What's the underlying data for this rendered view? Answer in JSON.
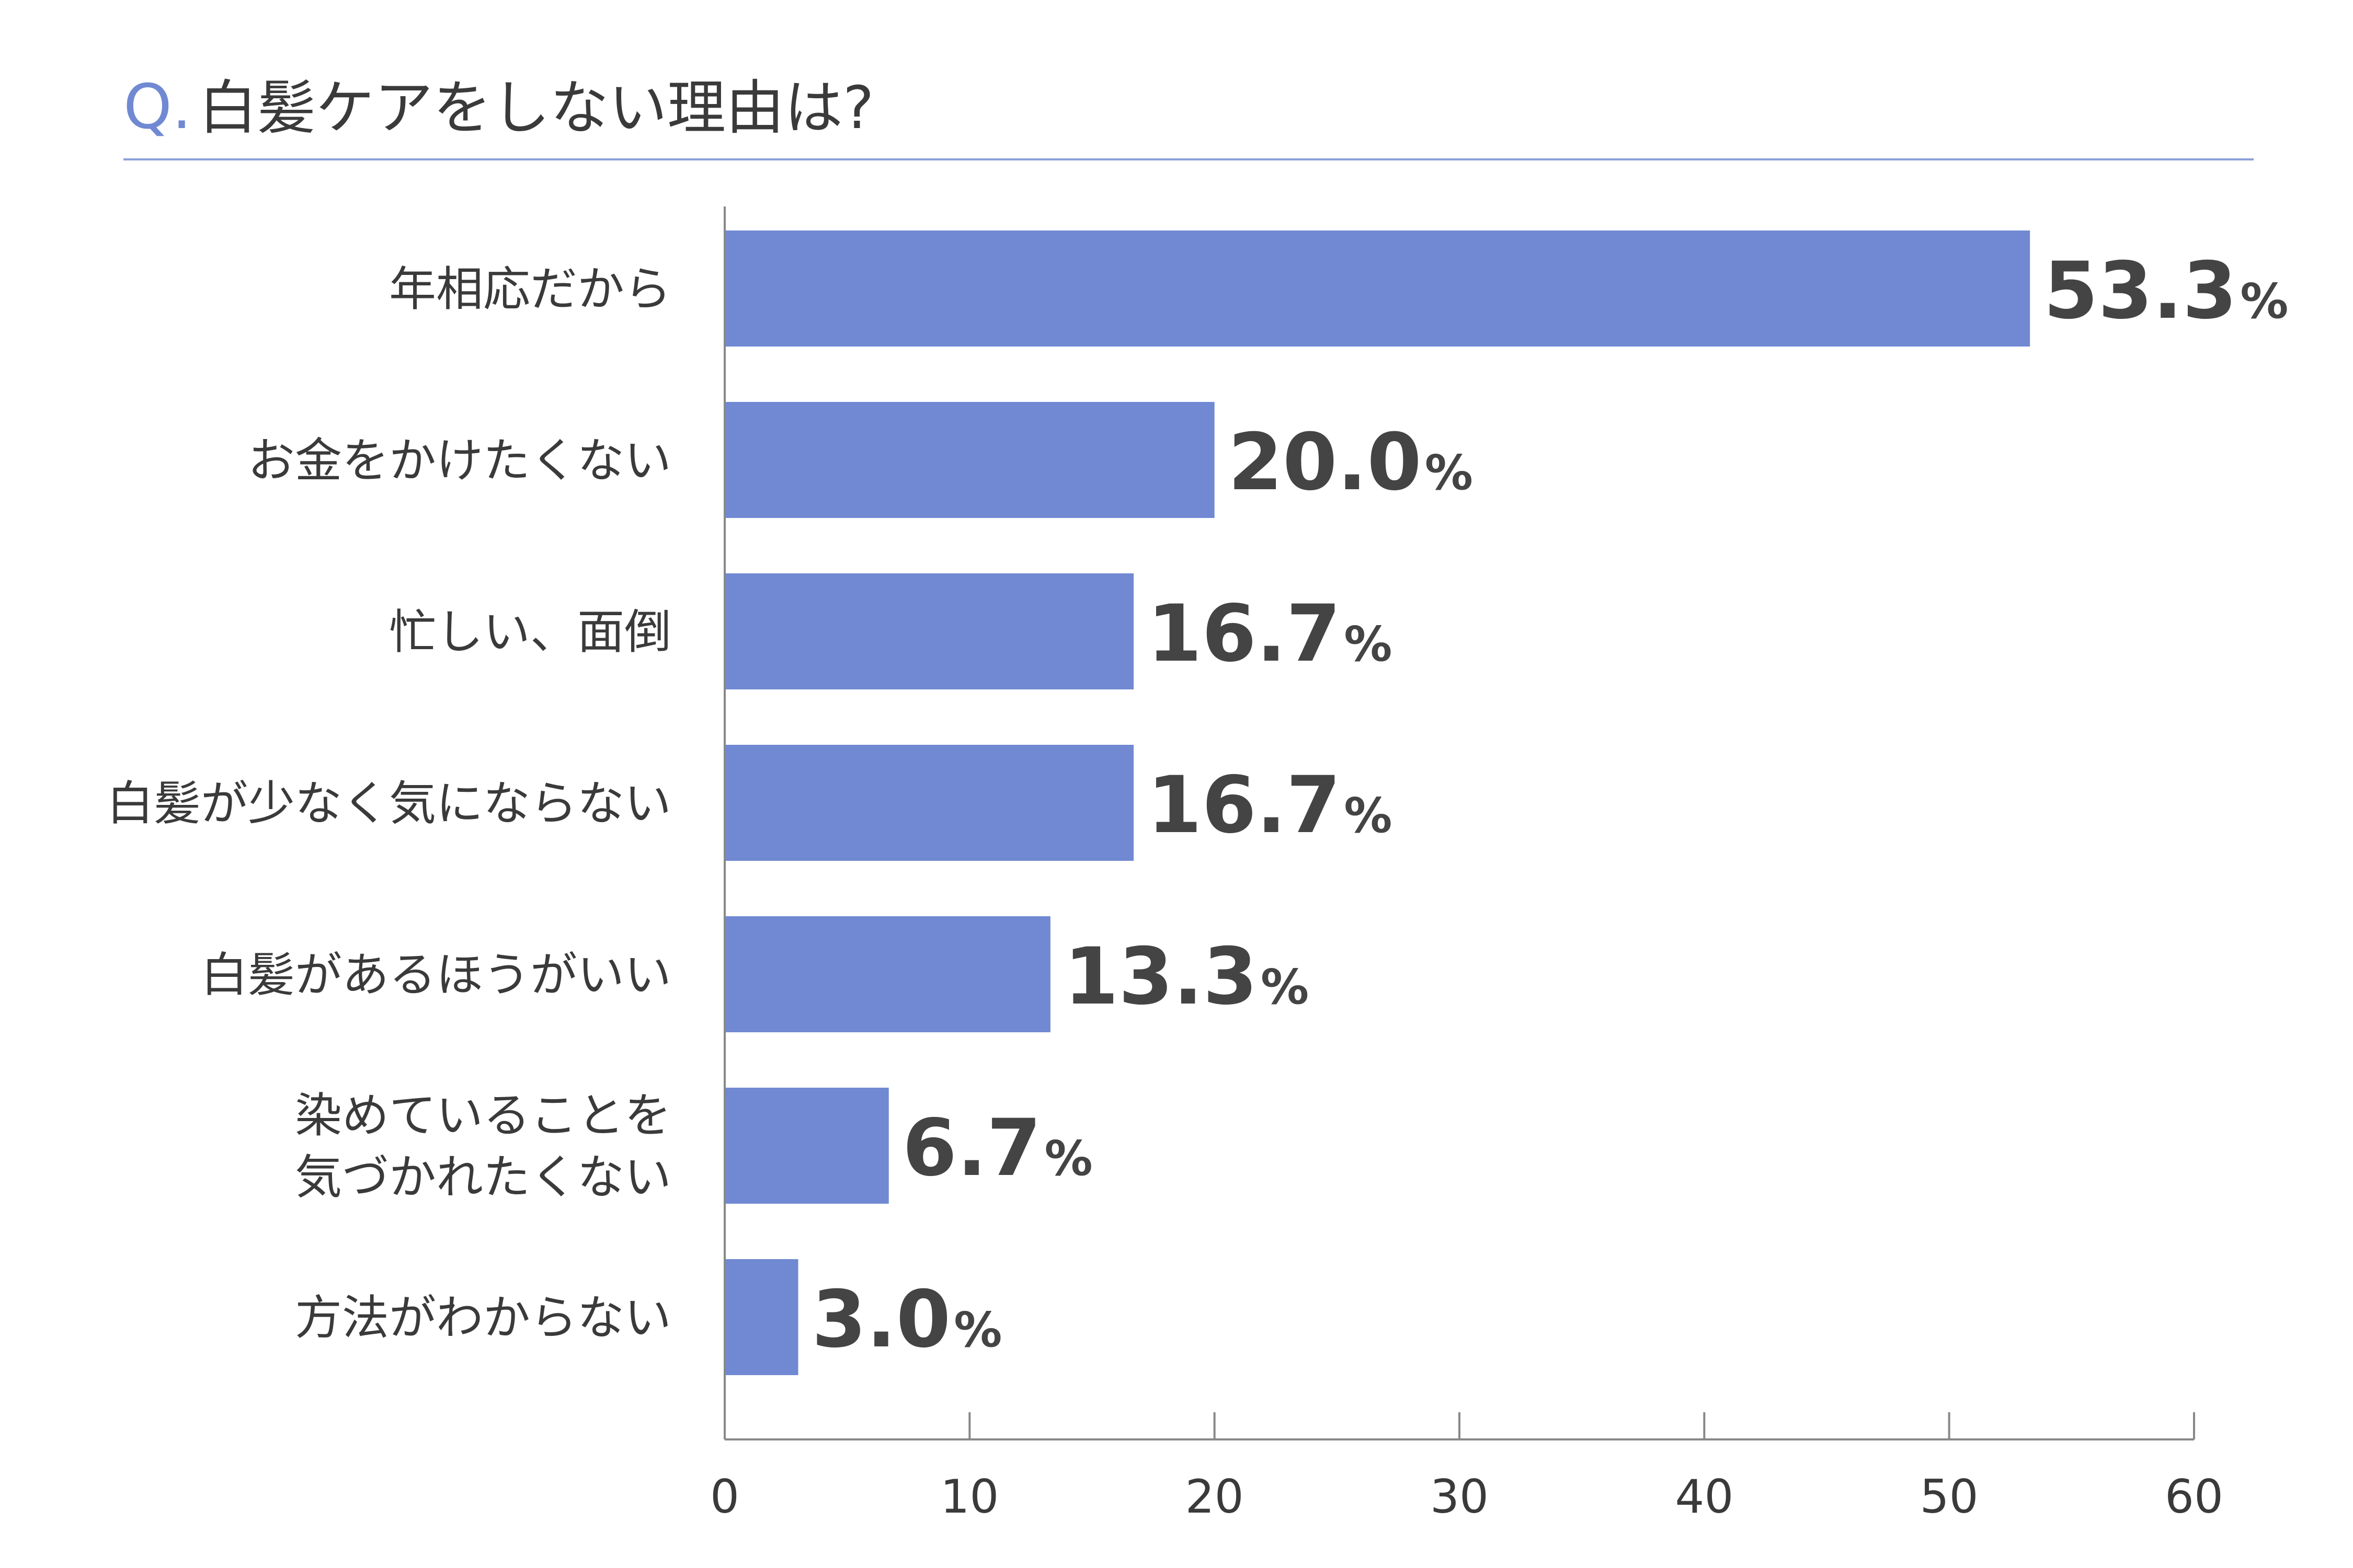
{
  "title": {
    "prefix": "Q.",
    "text": "白髪ケアをしない理由は?"
  },
  "colors": {
    "bar": "#7089d2",
    "accent": "#7089d2",
    "title_rule": "#8aa0d8",
    "axis": "#888888",
    "text": "#3a3a3a",
    "value_text": "#444444"
  },
  "chart_data": {
    "type": "bar",
    "orientation": "horizontal",
    "title": "Q.白髪ケアをしない理由は?",
    "categories": [
      "年相応だから",
      "お金をかけたくない",
      "忙しい、面倒",
      "白髪が少なく気にならない",
      "白髪があるほうがいい",
      "染めていることを\n気づかれたくない",
      "方法がわからない"
    ],
    "values": [
      53.3,
      20.0,
      16.7,
      16.7,
      13.3,
      6.7,
      3.0
    ],
    "value_labels": [
      "53.3",
      "20.0",
      "16.7",
      "16.7",
      "13.3",
      "6.7",
      "3.0"
    ],
    "value_unit": "%",
    "xlim": [
      0,
      60
    ],
    "xticks": [
      0,
      10,
      20,
      30,
      40,
      50,
      60
    ],
    "xlabel": "",
    "ylabel": "",
    "grid": false,
    "legend": "none"
  }
}
